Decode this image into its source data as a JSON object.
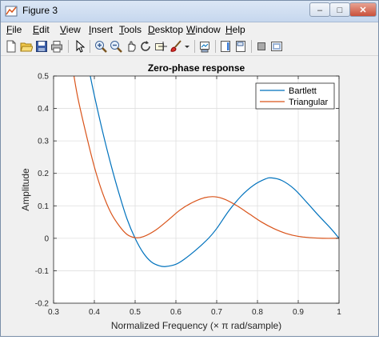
{
  "window": {
    "title": "Figure 3",
    "minimize_label": "–",
    "maximize_label": "□",
    "close_label": "✕"
  },
  "menu": {
    "items": [
      {
        "label": "File",
        "ul": "F",
        "rest": "ile"
      },
      {
        "label": "Edit",
        "ul": "E",
        "rest": "dit"
      },
      {
        "label": "View",
        "ul": "V",
        "rest": "iew"
      },
      {
        "label": "Insert",
        "ul": "I",
        "rest": "nsert"
      },
      {
        "label": "Tools",
        "ul": "T",
        "rest": "ools"
      },
      {
        "label": "Desktop",
        "ul": "D",
        "rest": "esktop"
      },
      {
        "label": "Window",
        "ul": "W",
        "rest": "indow"
      },
      {
        "label": "Help",
        "ul": "H",
        "rest": "elp"
      }
    ]
  },
  "toolbar": {
    "icons": [
      "new-figure-icon",
      "open-file-icon",
      "save-icon",
      "print-icon",
      "pointer-icon",
      "zoom-in-icon",
      "zoom-out-icon",
      "pan-icon",
      "rotate-icon",
      "data-cursor-icon",
      "brush-icon",
      "brush-dropdown-icon",
      "link-plot-icon",
      "colorbar-icon",
      "legend-icon",
      "hide-plot-tools-icon",
      "show-plot-tools-icon"
    ]
  },
  "chart_data": {
    "type": "line",
    "title": "Zero-phase response",
    "xlabel": "Normalized Frequency (× π rad/sample)",
    "ylabel": "Amplitude",
    "xlim": [
      0.3,
      1.0
    ],
    "ylim": [
      -0.2,
      0.5
    ],
    "xticks": [
      "0.3",
      "0.4",
      "0.5",
      "0.6",
      "0.7",
      "0.8",
      "0.9",
      "1"
    ],
    "yticks": [
      "-0.2",
      "-0.1",
      "0",
      "0.1",
      "0.2",
      "0.3",
      "0.4",
      "0.5"
    ],
    "grid": true,
    "legend_position": "top-right",
    "series": [
      {
        "name": "Bartlett",
        "color": "#0072bd",
        "x": [
          0.39,
          0.4,
          0.42,
          0.44,
          0.46,
          0.48,
          0.5,
          0.52,
          0.54,
          0.56,
          0.575,
          0.6,
          0.62,
          0.65,
          0.68,
          0.7,
          0.73,
          0.76,
          0.79,
          0.82,
          0.835,
          0.86,
          0.89,
          0.92,
          0.95,
          0.98,
          1.0
        ],
        "y": [
          0.5,
          0.44,
          0.33,
          0.23,
          0.14,
          0.06,
          0.0,
          -0.045,
          -0.073,
          -0.085,
          -0.087,
          -0.08,
          -0.065,
          -0.035,
          0.0,
          0.03,
          0.085,
          0.13,
          0.163,
          0.183,
          0.186,
          0.178,
          0.152,
          0.112,
          0.07,
          0.03,
          0.0
        ]
      },
      {
        "name": "Triangular",
        "color": "#d95319",
        "x": [
          0.35,
          0.36,
          0.38,
          0.4,
          0.42,
          0.44,
          0.46,
          0.48,
          0.5,
          0.52,
          0.55,
          0.58,
          0.61,
          0.64,
          0.67,
          0.695,
          0.72,
          0.75,
          0.78,
          0.81,
          0.84,
          0.87,
          0.9,
          0.93,
          0.96,
          1.0
        ],
        "y": [
          0.5,
          0.43,
          0.32,
          0.22,
          0.14,
          0.08,
          0.04,
          0.012,
          0.002,
          0.005,
          0.025,
          0.055,
          0.087,
          0.11,
          0.125,
          0.128,
          0.12,
          0.1,
          0.075,
          0.05,
          0.03,
          0.015,
          0.006,
          0.002,
          0.0,
          0.0
        ]
      }
    ]
  }
}
